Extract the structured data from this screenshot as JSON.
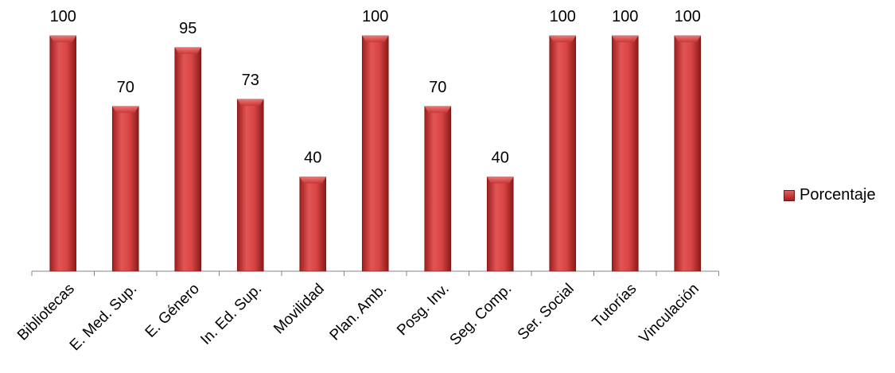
{
  "chart_data": {
    "type": "bar",
    "categories": [
      "Bibliotecas",
      "E. Med. Sup.",
      "E. Género",
      "In. Ed. Sup.",
      "Movilidad",
      "Plan. Amb.",
      "Posg.  Inv.",
      "Seg. Comp.",
      "Ser. Social",
      "Tutorías",
      "Vinculación"
    ],
    "series": [
      {
        "name": "Porcentaje",
        "values": [
          100,
          70,
          95,
          73,
          40,
          100,
          70,
          40,
          100,
          100,
          100
        ]
      }
    ],
    "ylim": [
      0,
      100
    ],
    "grid": false,
    "data_labels": true,
    "legend_position": "right",
    "colors": {
      "bar": "#c83232",
      "bar_light": "#e86a6a",
      "bar_dark": "#8f1a1a",
      "axis": "#868686"
    }
  }
}
